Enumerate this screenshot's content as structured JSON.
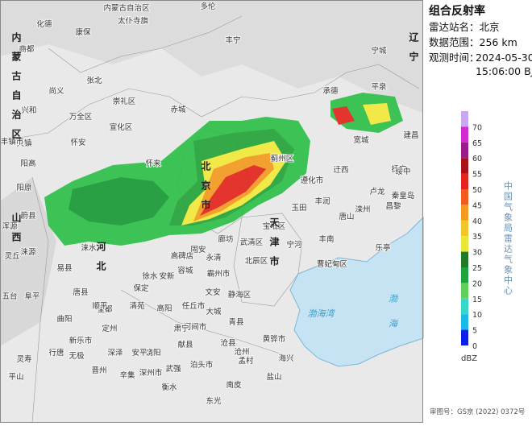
{
  "panel": {
    "title": "组合反射率",
    "station": "雷达站名：北京",
    "range": "数据范围：256 km",
    "time_label": "观测时间：",
    "time_date": "2024-05-30",
    "time_clock": "15:06:00 BJT"
  },
  "legend": {
    "ticks": [
      70,
      65,
      60,
      55,
      50,
      45,
      40,
      35,
      30,
      25,
      20,
      15,
      10,
      5,
      0
    ],
    "unit": "dBZ",
    "source": "中国气象局雷达气象中心"
  },
  "footer": "审图号：GS京 (2022) 0372号",
  "map": {
    "places": [
      "内蒙古自治区",
      "多伦",
      "化德",
      "康保",
      "太仆寺旗",
      "丰宁",
      "商都",
      "张北",
      "尚义",
      "崇礼区",
      "赤城",
      "万全区",
      "兴和",
      "怀安",
      "承德",
      "宽城",
      "迁西",
      "遵化市",
      "玉田",
      "丰润",
      "滦州",
      "乐亭",
      "抚宁",
      "昌黎",
      "卢龙",
      "丰南",
      "曹妃甸区",
      "宁河",
      "宝坻区",
      "武清区",
      "北辰区",
      "静海区",
      "霸州市",
      "永清",
      "固安",
      "高碑店",
      "容城",
      "徐水",
      "高阳",
      "任丘市",
      "文安",
      "大城",
      "河间市",
      "青县",
      "沧县",
      "黄骅市",
      "海兴",
      "盐山",
      "孟村",
      "南皮",
      "东光",
      "泊头市",
      "献县",
      "饶阳",
      "武强",
      "深州市",
      "衡水",
      "安平",
      "辛集",
      "晋州",
      "深泽",
      "无极",
      "新乐市",
      "定州",
      "望都",
      "唐县",
      "顺平",
      "曲阳",
      "阜平",
      "行唐",
      "灵寿",
      "平山",
      "涞源",
      "涞水",
      "易县",
      "蔚县",
      "阳原",
      "天镇",
      "丰镇市",
      "阳高",
      "浑源",
      "灵丘",
      "五台",
      "宁城",
      "平泉",
      "建昌",
      "绥中",
      "宣化区",
      "怀来",
      "蓟州区",
      "安新",
      "肃宁",
      "清苑",
      "河北",
      "山西",
      "内蒙古自治区",
      "辽宁",
      "天津市",
      "北京市",
      "渤海湾",
      "渤海",
      "秦皇岛",
      "唐山",
      "保定",
      "沧州",
      "廊坊"
    ]
  }
}
